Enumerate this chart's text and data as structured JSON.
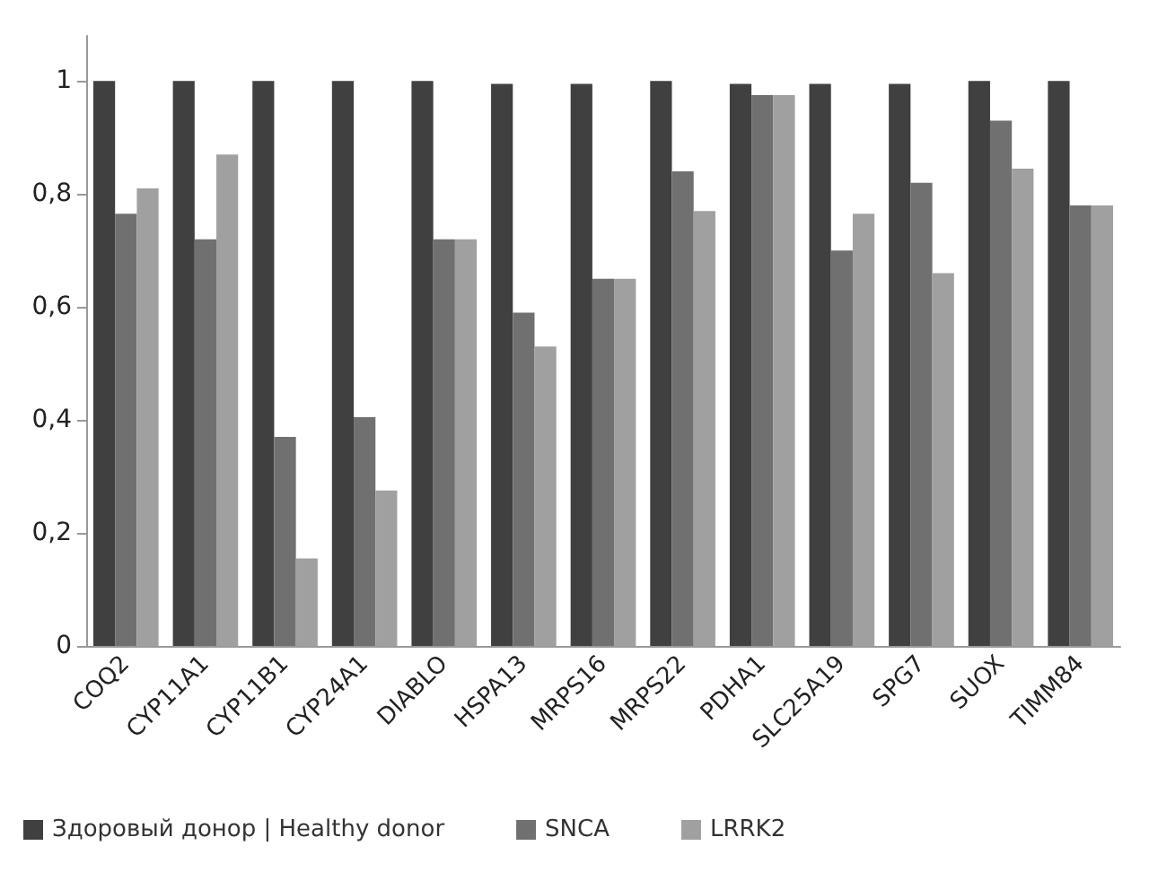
{
  "chart_data": {
    "type": "bar",
    "categories": [
      "COQ2",
      "CYP11A1",
      "CYP11B1",
      "CYP24A1",
      "DIABLO",
      "HSPA13",
      "MRPS16",
      "MRPS22",
      "PDHA1",
      "SLC25A19",
      "SPG7",
      "SUOX",
      "TIMM84"
    ],
    "series": [
      {
        "name": "Здоровый донор | Healthy donor",
        "color": "#404040",
        "values": [
          1,
          1,
          1,
          1,
          1,
          0.995,
          0.995,
          1,
          0.995,
          0.995,
          0.995,
          1,
          1
        ]
      },
      {
        "name": "SNCA",
        "color": "#707070",
        "values": [
          0.765,
          0.72,
          0.37,
          0.405,
          0.72,
          0.59,
          0.65,
          0.84,
          0.975,
          0.7,
          0.82,
          0.93,
          0.78
        ]
      },
      {
        "name": "LRRK2",
        "color": "#a0a0a0",
        "values": [
          0.81,
          0.87,
          0.155,
          0.275,
          0.72,
          0.53,
          0.65,
          0.77,
          0.975,
          0.765,
          0.66,
          0.845,
          0.78
        ]
      }
    ],
    "ylim": [
      0,
      1.08
    ],
    "yticks": [
      0,
      {
        "value": 0.2,
        "label": "0,2"
      },
      {
        "value": 0.4,
        "label": "0,4"
      },
      {
        "value": 0.6,
        "label": "0,6"
      },
      {
        "value": 0.8,
        "label": "0,8"
      },
      1
    ],
    "grid": false,
    "legend": "bottom"
  }
}
